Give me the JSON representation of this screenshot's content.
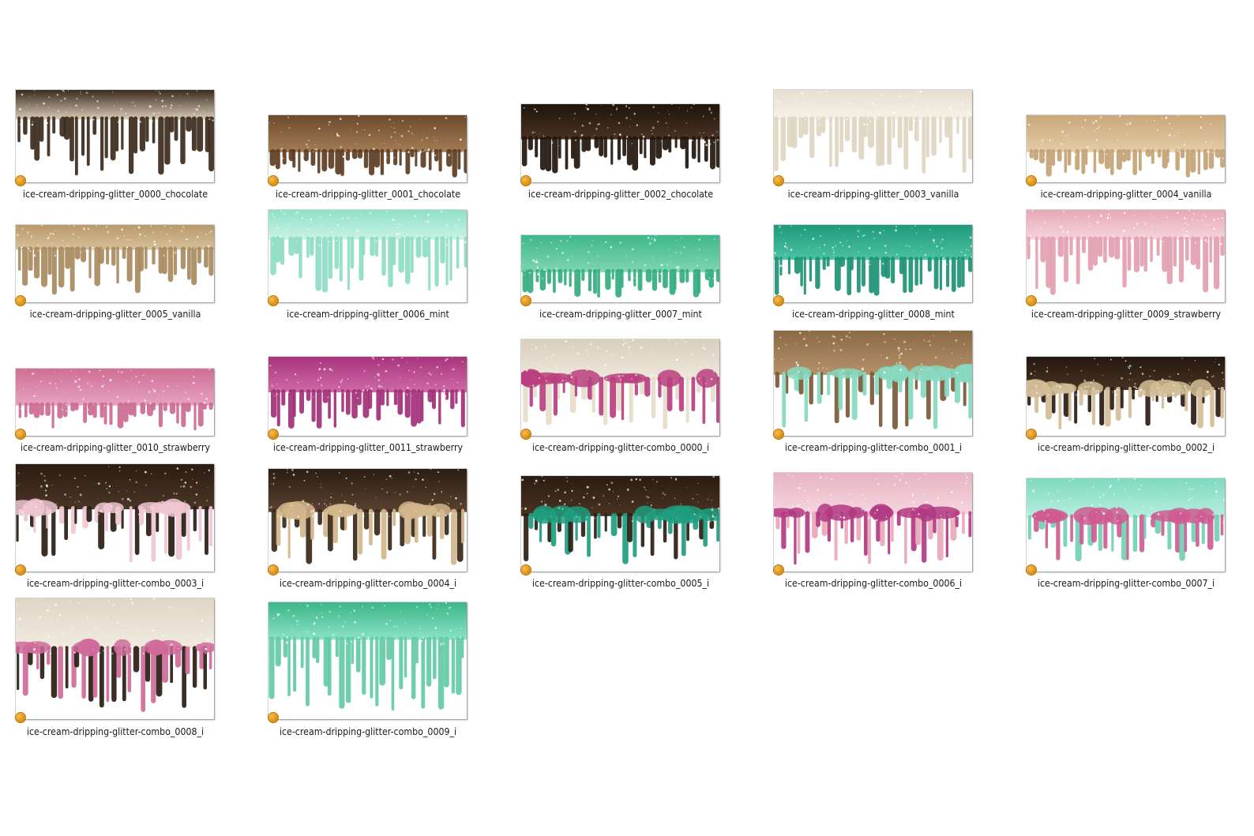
{
  "files": [
    {
      "label": "ice-cream-dripping-glitter_0000_chocolate",
      "top": [
        "#3a2a1c",
        "#d9ccb8"
      ],
      "drips": [
        "#3b2a1c",
        "#8c7a5e"
      ],
      "style": "tall"
    },
    {
      "label": "ice-cream-dripping-glitter_0001_chocolate",
      "top": [
        "#6b4a2c",
        "#a57d55"
      ],
      "drips": [
        "#5c3d22",
        "#8a6440"
      ],
      "style": "short"
    },
    {
      "label": "ice-cream-dripping-glitter_0002_chocolate",
      "top": [
        "#1f140c",
        "#4a3322"
      ],
      "drips": [
        "#22160d",
        "#3b2a1c"
      ],
      "style": "medium"
    },
    {
      "label": "ice-cream-dripping-glitter_0003_vanilla",
      "top": [
        "#e8dfcf",
        "#f6f1e8"
      ],
      "drips": [
        "#e0d5c1",
        "#efe6d6"
      ],
      "style": "tall"
    },
    {
      "label": "ice-cream-dripping-glitter_0004_vanilla",
      "top": [
        "#c9a77a",
        "#e4cda8"
      ],
      "drips": [
        "#c4a274",
        "#dcc297"
      ],
      "style": "short"
    },
    {
      "label": "ice-cream-dripping-glitter_0005_vanilla",
      "top": [
        "#b8996b",
        "#d8c19a"
      ],
      "drips": [
        "#a88a5e",
        "#cdb186"
      ],
      "style": "tall"
    },
    {
      "label": "ice-cream-dripping-glitter_0006_mint",
      "top": [
        "#8fe0c8",
        "#c9f3e5"
      ],
      "drips": [
        "#8ddcc4",
        "#b5ecdb"
      ],
      "style": "tall"
    },
    {
      "label": "ice-cream-dripping-glitter_0007_mint",
      "top": [
        "#3fb78a",
        "#7fd6b2"
      ],
      "drips": [
        "#34ad80",
        "#6dcda6"
      ],
      "style": "short"
    },
    {
      "label": "ice-cream-dripping-glitter_0008_mint",
      "top": [
        "#1f9a7c",
        "#4cc3a2"
      ],
      "drips": [
        "#1c9275",
        "#3db596"
      ],
      "style": "medium"
    },
    {
      "label": "ice-cream-dripping-glitter_0009_strawberry",
      "top": [
        "#e7a8b6",
        "#f6d4dc"
      ],
      "drips": [
        "#e3a0b0",
        "#f0c3cf"
      ],
      "style": "tall"
    },
    {
      "label": "ice-cream-dripping-glitter_0010_strawberry",
      "top": [
        "#cf6e95",
        "#e7a3bf"
      ],
      "drips": [
        "#cc6a92",
        "#e09ab6"
      ],
      "style": "short"
    },
    {
      "label": "ice-cream-dripping-glitter_0011_strawberry",
      "top": [
        "#a8357c",
        "#cf6aa8"
      ],
      "drips": [
        "#a3307a",
        "#c5609f"
      ],
      "style": "medium"
    },
    {
      "label": "ice-cream-dripping-glitter-combo_0000_i",
      "top": [
        "#d9cfbf",
        "#efe8dc"
      ],
      "drips": [
        "#b8407e",
        "#e6dccb"
      ],
      "style": "combo"
    },
    {
      "label": "ice-cream-dripping-glitter-combo_0001_i",
      "top": [
        "#8a6a44",
        "#b6926a"
      ],
      "drips": [
        "#86d9c0",
        "#7a5a38"
      ],
      "style": "combo"
    },
    {
      "label": "ice-cream-dripping-glitter-combo_0002_i",
      "top": [
        "#241710",
        "#4a3322"
      ],
      "drips": [
        "#d4bd98",
        "#2a1b12"
      ],
      "style": "combo"
    },
    {
      "label": "ice-cream-dripping-glitter-combo_0003_i",
      "top": [
        "#2a1c12",
        "#4b3626"
      ],
      "drips": [
        "#efc6d1",
        "#2a1c12"
      ],
      "style": "combo"
    },
    {
      "label": "ice-cream-dripping-glitter-combo_0004_i",
      "top": [
        "#2b1d13",
        "#5a4230"
      ],
      "drips": [
        "#d2b68c",
        "#3a2818"
      ],
      "style": "combo"
    },
    {
      "label": "ice-cream-dripping-glitter-combo_0005_i",
      "top": [
        "#2a1d13",
        "#4a3322"
      ],
      "drips": [
        "#1f9d7f",
        "#2a1d13"
      ],
      "style": "combo"
    },
    {
      "label": "ice-cream-dripping-glitter-combo_0006_i",
      "top": [
        "#e8b3c3",
        "#f5d6df"
      ],
      "drips": [
        "#b23a82",
        "#e8a7ba"
      ],
      "style": "combo"
    },
    {
      "label": "ice-cream-dripping-glitter-combo_0007_i",
      "top": [
        "#7fd9bf",
        "#b7efde"
      ],
      "drips": [
        "#cf5b92",
        "#72d0b4"
      ],
      "style": "combo"
    },
    {
      "label": "ice-cream-dripping-glitter-combo_0008_i",
      "top": [
        "#e0d6c6",
        "#f1ebe1"
      ],
      "drips": [
        "#cf6b9a",
        "#2a1c12"
      ],
      "style": "combo"
    },
    {
      "label": "ice-cream-dripping-glitter-combo_0009_i",
      "top": [
        "#3cb68a",
        "#8be3c6"
      ],
      "drips": [
        "#63cba6",
        "#a5ecd6"
      ],
      "style": "tall"
    }
  ]
}
